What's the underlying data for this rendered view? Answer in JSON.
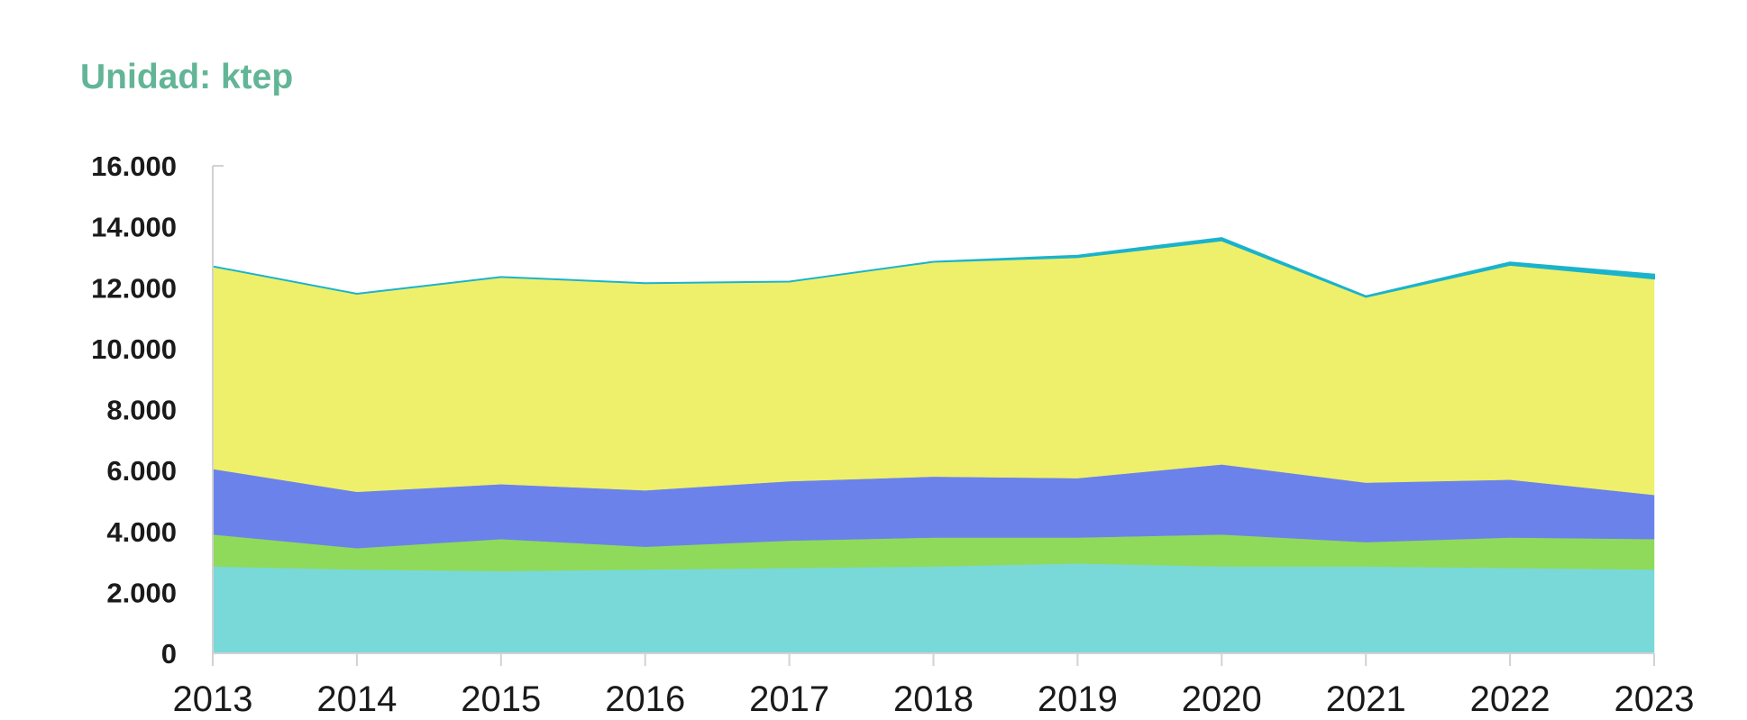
{
  "unit_label": "Unidad: ktep",
  "chart_data": {
    "type": "area",
    "stacked": true,
    "title": "",
    "xlabel": "",
    "ylabel": "",
    "x": [
      "2013",
      "2014",
      "2015",
      "2016",
      "2017",
      "2018",
      "2019",
      "2020",
      "2021",
      "2022",
      "2023"
    ],
    "ylim": [
      0,
      16000
    ],
    "yticks": [
      0,
      2000,
      4000,
      6000,
      8000,
      10000,
      12000,
      14000,
      16000
    ],
    "ytick_labels": [
      "0",
      "2.000",
      "4.000",
      "6.000",
      "8.000",
      "10.000",
      "12.000",
      "14.000",
      "16.000"
    ],
    "grid": false,
    "legend": "none",
    "series": [
      {
        "color": "#78d9d8",
        "values": [
          2850,
          2750,
          2700,
          2750,
          2800,
          2850,
          2950,
          2850,
          2850,
          2800,
          2750
        ]
      },
      {
        "color": "#8fda5b",
        "values": [
          1050,
          700,
          1050,
          750,
          900,
          950,
          850,
          1050,
          800,
          1000,
          1000
        ]
      },
      {
        "color": "#6b82ea",
        "values": [
          2150,
          1850,
          1800,
          1850,
          1950,
          2000,
          1950,
          2300,
          1950,
          1900,
          1450
        ]
      },
      {
        "color": "#eef06b",
        "values": [
          6650,
          6500,
          6800,
          6800,
          6550,
          7050,
          7250,
          7350,
          6100,
          7050,
          7100
        ]
      },
      {
        "color": "#1bb3cc",
        "values": [
          0,
          0,
          0,
          0,
          0,
          0,
          50,
          80,
          20,
          80,
          130
        ]
      }
    ]
  }
}
